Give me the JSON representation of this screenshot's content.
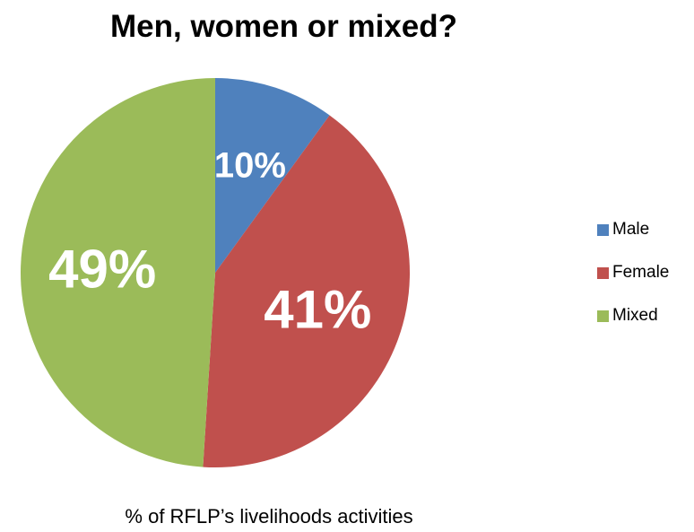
{
  "chart_data": {
    "type": "pie",
    "title": "Men, women or mixed?",
    "subtitle": "% of RFLP’s livelihoods activities",
    "categories": [
      "Male",
      "Female",
      "Mixed"
    ],
    "values": [
      10,
      41,
      49
    ],
    "data_labels": [
      "10%",
      "41%",
      "49%"
    ],
    "colors": [
      "#4f81bd",
      "#c0504d",
      "#9bbb59"
    ],
    "legend_position": "right"
  }
}
